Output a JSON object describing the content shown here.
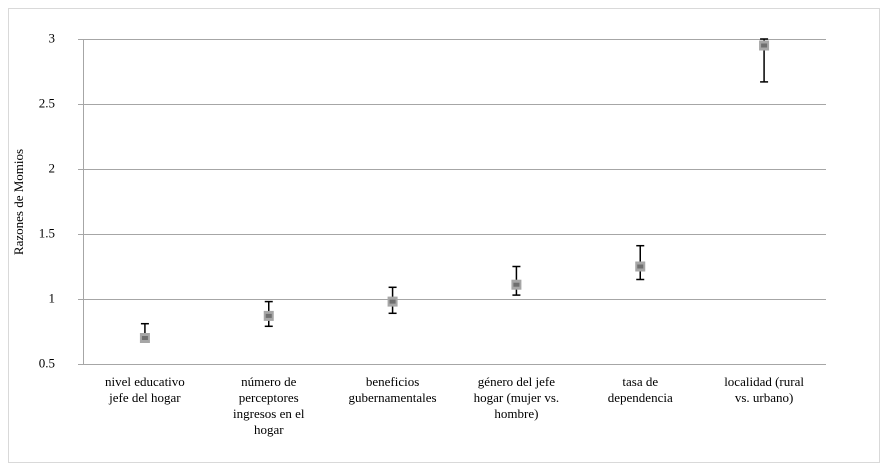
{
  "chart_data": {
    "type": "errorbar",
    "y_label": "Razones de Momios",
    "categories": [
      [
        "nivel educativo",
        "jefe del hogar"
      ],
      [
        "número de",
        "perceptores",
        "ingresos en el",
        "hogar"
      ],
      [
        "beneficios",
        "gubernamentales"
      ],
      [
        "género del jefe",
        "hogar (mujer vs.",
        "hombre)"
      ],
      [
        "tasa de",
        "dependencia"
      ],
      [
        "localidad (rural",
        "vs. urbano)"
      ]
    ],
    "values": [
      0.7,
      0.87,
      0.98,
      1.11,
      1.25,
      2.95
    ],
    "lower": [
      0.67,
      0.79,
      0.89,
      1.03,
      1.15,
      2.67
    ],
    "upper": [
      0.81,
      0.98,
      1.09,
      1.25,
      1.41,
      3.0
    ],
    "color": "#a6a6a6",
    "ylim": [
      0.5,
      3
    ],
    "yticks": [
      0.5,
      1,
      1.5,
      2,
      2.5,
      3
    ],
    "grid": true
  }
}
